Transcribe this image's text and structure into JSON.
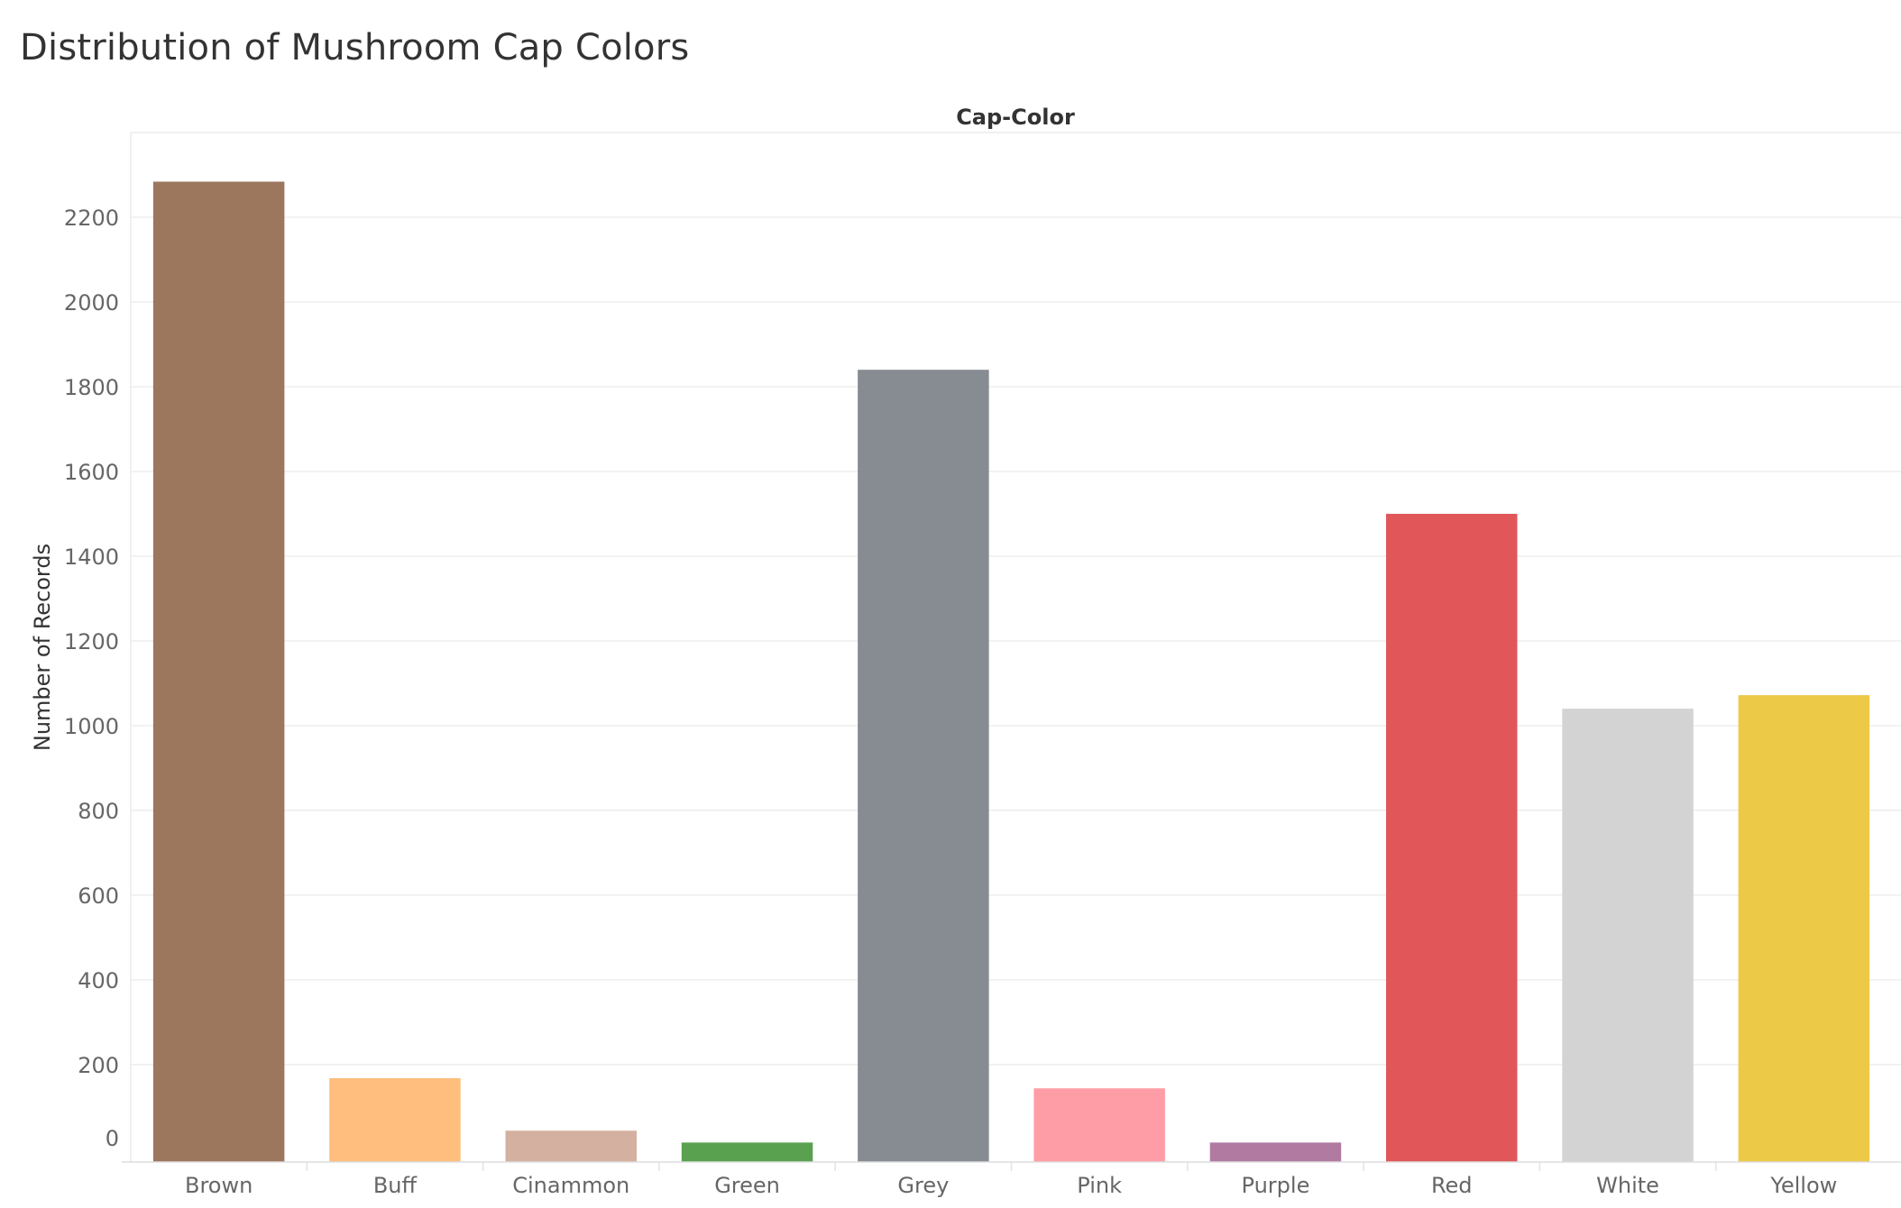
{
  "chart_data": {
    "type": "bar",
    "title": "Distribution of Mushroom Cap Colors",
    "x_header": "Cap-Color",
    "ylabel": "Number of Records",
    "categories": [
      "Brown",
      "Buff",
      "Cinammon",
      "Green",
      "Grey",
      "Pink",
      "Purple",
      "Red",
      "White",
      "Yellow"
    ],
    "values": [
      2284,
      168,
      44,
      16,
      1840,
      144,
      16,
      1500,
      1040,
      1072
    ],
    "colors": [
      "#9c775e",
      "#ffbe7d",
      "#d4b0a0",
      "#59a14f",
      "#868c92",
      "#ff9da7",
      "#b07aa1",
      "#e15759",
      "#d3d3d3",
      "#edc948"
    ],
    "yticks": [
      0,
      200,
      400,
      600,
      800,
      1000,
      1200,
      1400,
      1600,
      1800,
      2000,
      2200
    ],
    "ylim": [
      -30,
      2400
    ],
    "grid": true,
    "legend": "none"
  }
}
